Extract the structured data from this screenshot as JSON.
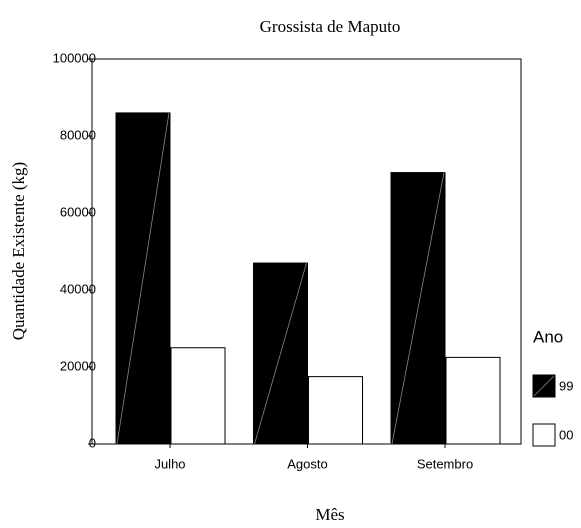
{
  "chart_data": {
    "type": "bar",
    "title": "Grossista de Maputo",
    "xlabel": "Mês",
    "ylabel": "Quantidade Existente (kg)",
    "categories": [
      "Julho",
      "Agosto",
      "Setembro"
    ],
    "series": [
      {
        "name": "99",
        "color": "#000000",
        "values": [
          86000,
          47000,
          70500
        ]
      },
      {
        "name": "00",
        "color": "#ffffff",
        "values": [
          25000,
          17500,
          22500
        ]
      }
    ],
    "ylim": [
      0,
      100000
    ],
    "yticks": [
      0,
      20000,
      40000,
      60000,
      80000,
      100000
    ],
    "legend_title": "Ano",
    "legend": "right",
    "grid": false
  }
}
